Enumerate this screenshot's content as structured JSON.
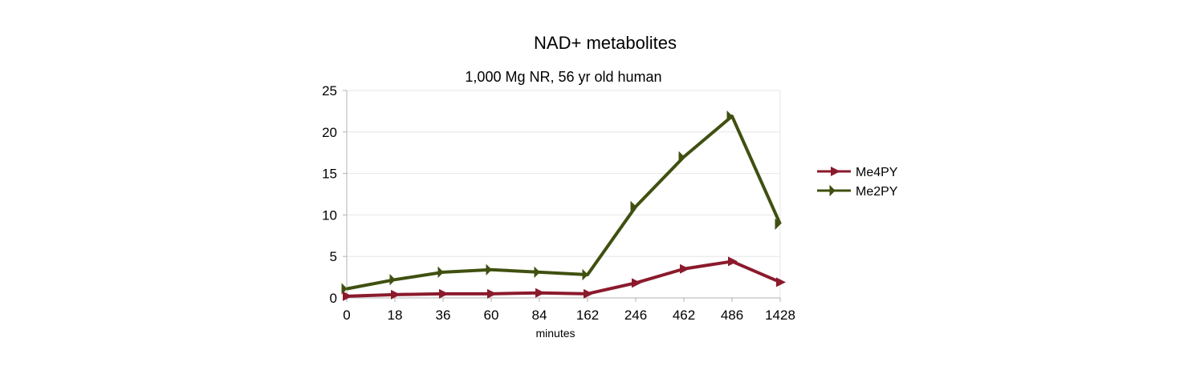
{
  "chart_data": {
    "type": "line",
    "title": "NAD+ metabolites",
    "subtitle": "1,000 Mg NR, 56 yr old human",
    "xlabel": "minutes",
    "ylabel": "",
    "categories": [
      "0",
      "18",
      "36",
      "60",
      "84",
      "162",
      "246",
      "462",
      "486",
      "1428"
    ],
    "ylim": [
      0,
      25
    ],
    "yticks": [
      0,
      5,
      10,
      15,
      20,
      25
    ],
    "grid": true,
    "legend_position": "right",
    "series": [
      {
        "name": "Me4PY",
        "color": "#8b1a2c",
        "marker": "right-triangle",
        "values": [
          0.2,
          0.4,
          0.5,
          0.5,
          0.6,
          0.5,
          1.8,
          3.5,
          4.4,
          1.9
        ]
      },
      {
        "name": "Me2PY",
        "color": "#3f5010",
        "marker": "bowtie",
        "values": [
          1.1,
          2.2,
          3.1,
          3.4,
          3.1,
          2.8,
          11.0,
          17.0,
          21.9,
          8.9
        ]
      }
    ]
  }
}
